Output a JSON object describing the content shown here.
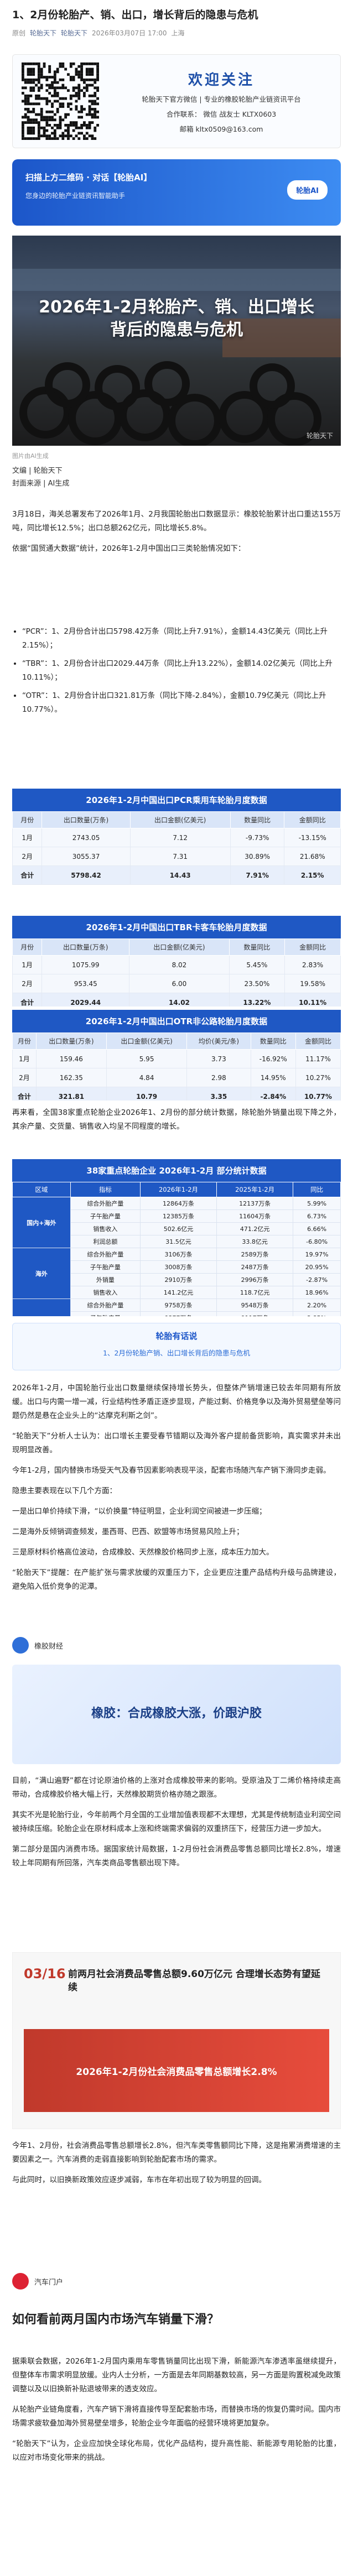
{
  "header": {
    "title": "1、2月份轮胎产、销、出口，增长背后的隐患与危机",
    "meta": [
      "原创",
      "轮胎天下",
      "轮胎天下",
      "2026年03月07日 17:00",
      "上海"
    ]
  },
  "promo": {
    "welcome": "欢迎关注",
    "line1": "轮胎天下官方微信 | 专业的橡胶轮胎产业链资讯平台",
    "contact": "合作联系： 微信 战友士 KLTX0603",
    "email": "邮箱 kltx0509@163.com"
  },
  "ai_banner": {
    "title": "扫描上方二维码 · 对话【轮胎AI】",
    "sub": "您身边的轮胎产业链资讯智能助手",
    "button": "轮胎AI"
  },
  "hero": {
    "title": "2026年1-2月轮胎产、销、出口增长背后的隐患与危机",
    "watermark": "轮胎天下",
    "caption": "图片由AI生成"
  },
  "credits": [
    "文编 | 轮胎天下",
    "封面来源 | AI生成"
  ],
  "intro": [
    "3月18日，海关总署发布了2026年1月、2月我国轮胎出口数据显示：橡胶轮胎累计出口重达155万吨，同比增长12.5%；出口总额262亿元，同比增长5.8%。",
    "依据“国贸通大数据”统计，2026年1-2月中国出口三类轮胎情况如下："
  ],
  "bullets": [
    "“PCR”：1、2月份合计出口5798.42万条（同比上升7.91%），金额14.43亿美元（同比上升2.15%）；",
    "“TBR”：1、2月份合计出口2029.44万条（同比上升13.22%），金额14.02亿美元（同比上升10.11%）；",
    "“OTR”：1、2月份合计出口321.81万条（同比下降-2.84%），金额10.79亿美元（同比上升10.77%）。"
  ],
  "tables": [
    {
      "title": "2026年1-2月中国出口PCR乘用车轮胎月度数据",
      "header": [
        "月份",
        "出口数量(万条)",
        "出口金额(亿美元)",
        "数量同比",
        "金额同比"
      ],
      "rows": [
        [
          "1月",
          "2743.05",
          "7.12",
          "-9.73%",
          "-13.15%"
        ],
        [
          "2月",
          "3055.37",
          "7.31",
          "30.89%",
          "21.68%"
        ],
        [
          "合计",
          "5798.42",
          "14.43",
          "7.91%",
          "2.15%"
        ]
      ]
    },
    {
      "title": "2026年1-2月中国出口TBR卡客车轮胎月度数据",
      "header": [
        "月份",
        "出口数量(万条)",
        "出口金额(亿美元)",
        "数量同比",
        "金额同比"
      ],
      "rows": [
        [
          "1月",
          "1075.99",
          "8.02",
          "5.45%",
          "2.83%"
        ],
        [
          "2月",
          "953.45",
          "6.00",
          "23.50%",
          "19.58%"
        ],
        [
          "合计",
          "2029.44",
          "14.02",
          "13.22%",
          "10.11%"
        ]
      ]
    },
    {
      "title": "2026年1-2月中国出口OTR非公路轮胎月度数据",
      "header": [
        "月份",
        "出口数量(万条)",
        "出口金额(亿美元)",
        "均价(美元/条)",
        "数量同比",
        "金额同比"
      ],
      "rows": [
        [
          "1月",
          "159.46",
          "5.95",
          "3.73",
          "-16.92%",
          "11.17%"
        ],
        [
          "2月",
          "162.35",
          "4.84",
          "2.98",
          "14.95%",
          "10.27%"
        ],
        [
          "合计",
          "321.81",
          "10.79",
          "3.35",
          "-2.84%",
          "10.77%"
        ]
      ]
    }
  ],
  "after_tables": "再来看，全国38家重点轮胎企业2026年1、2月份的部分统计数据，除轮胎外销量出现下降之外，其余产量、交货量、销售收入均呈不同程度的增长。",
  "key_table": {
    "title": "38家重点轮胎企业 2026年1-2月 部分统计数据",
    "header": [
      "区域",
      "指标",
      "2026年1-2月",
      "2025年1-2月",
      "同比"
    ],
    "groups": [
      {
        "name": "国内+海外",
        "rows": [
          [
            "综合外胎产量",
            "12864万条",
            "12137万条",
            "5.99%"
          ],
          [
            "子午胎产量",
            "12385万条",
            "11604万条",
            "6.73%"
          ],
          [
            "销售收入",
            "502.6亿元",
            "471.2亿元",
            "6.66%"
          ],
          [
            "利润总额",
            "31.5亿元",
            "33.8亿元",
            "-6.80%"
          ]
        ]
      },
      {
        "name": "海外",
        "rows": [
          [
            "综合外胎产量",
            "3106万条",
            "2589万条",
            "19.97%"
          ],
          [
            "子午胎产量",
            "3008万条",
            "2487万条",
            "20.95%"
          ],
          [
            "外销量",
            "2910万条",
            "2996万条",
            "-2.87%"
          ],
          [
            "销售收入",
            "141.2亿元",
            "118.7亿元",
            "18.96%"
          ]
        ]
      },
      {
        "name": "国内",
        "rows": [
          [
            "综合外胎产量",
            "9758万条",
            "9548万条",
            "2.20%"
          ],
          [
            "子午胎产量",
            "9377万条",
            "9117万条",
            "2.85%"
          ],
          [
            "内销量",
            "5632万条",
            "5405万条",
            "4.20%"
          ],
          [
            "销售收入",
            "361.4亿元",
            "352.5亿元",
            "2.52%"
          ]
        ]
      }
    ]
  },
  "says": {
    "title": "轮胎有话说",
    "item": "1、2月份轮胎产销、出口增长背后的隐患与危机"
  },
  "section2": [
    "2026年1-2月，中国轮胎行业出口数量继续保持增长势头，但整体产销增速已较去年同期有所放缓。出口与内需一增一减，行业结构性矛盾正逐步显现，产能过剩、价格竞争以及海外贸易壁垒等问题仍然是悬在企业头上的“达摩克利斯之剑”。",
    "“轮胎天下”分析人士认为：出口增长主要受春节错期以及海外客户提前备货影响，真实需求并未出现明显改善。",
    "今年1-2月，国内替换市场受天气及春节因素影响表现平淡，配套市场随汽车产销下滑同步走弱。",
    "隐患主要表现在以下几个方面：",
    "一是出口单价持续下滑，“以价换量”特征明显，企业利润空间被进一步压缩；",
    "二是海外反倾销调查频发，墨西哥、巴西、欧盟等市场贸易风险上升；",
    "三是原材料价格高位波动，合成橡胶、天然橡胶价格同步上涨，成本压力加大。",
    "“轮胎天下”提醒：在产能扩张与需求放缓的双重压力下，企业更应注重产品结构升级与品牌建设，避免陷入低价竞争的泥潭。"
  ],
  "source1": "橡胶财经",
  "card1": "橡胶：合成橡胶大涨，价跟沪胶",
  "section3": [
    "目前，“满山遍野”都在讨论原油价格的上涨对合成橡胶带来的影响。受原油及丁二烯价格持续走高带动，合成橡胶价格大幅上行，天然橡胶期货价格亦随之跟涨。",
    "其实不光是轮胎行业，今年前两个月全国的工业增加值表现都不太理想，尤其是传统制造业利润空间被持续压缩。轮胎企业在原材料成本上涨和终端需求偏弱的双重挤压下，经营压力进一步加大。",
    "第二部分是国内消费市场。据国家统计局数据，1-2月份社会消费品零售总额同比增长2.8%，增速较上年同期有所回落，汽车类商品零售额出现下降。"
  ],
  "cons": {
    "date": "03/16",
    "title": "前两月社会消费品零售总额9.60万亿元 合理增长态势有望延续",
    "banner": "2026年1-2月份社会消费品零售总额增长2.8%"
  },
  "section4": [
    "今年1、2月份，社会消费品零售总额增长2.8%，但汽车类零售额同比下降，这是拖累消费增速的主要因素之一。汽车消费的走弱直接影响到轮胎配套市场的需求。",
    "与此同时，以旧换新政策效应逐步减弱，车市在年初出现了较为明显的回调。"
  ],
  "source2": "汽车门户",
  "heading": "如何看前两月国内市场汽车销量下滑？",
  "final": [
    "据乘联会数据，2026年1-2月国内乘用车零售销量同比出现下滑，新能源汽车渗透率虽继续提升，但整体车市需求明显放缓。业内人士分析，一方面是去年同期基数较高，另一方面是购置税减免政策调整以及以旧换新补贴退坡带来的透支效应。",
    "从轮胎产业链角度看，汽车产销下滑将直接传导至配套胎市场，而替换市场的恢复仍需时间。国内市场需求疲软叠加海外贸易壁垒增多，轮胎企业今年面临的经营环境将更加复杂。",
    "“轮胎天下”认为，企业应加快全球化布局，优化产品结构，提升高性能、新能源专用轮胎的比重，以应对市场变化带来的挑战。"
  ]
}
